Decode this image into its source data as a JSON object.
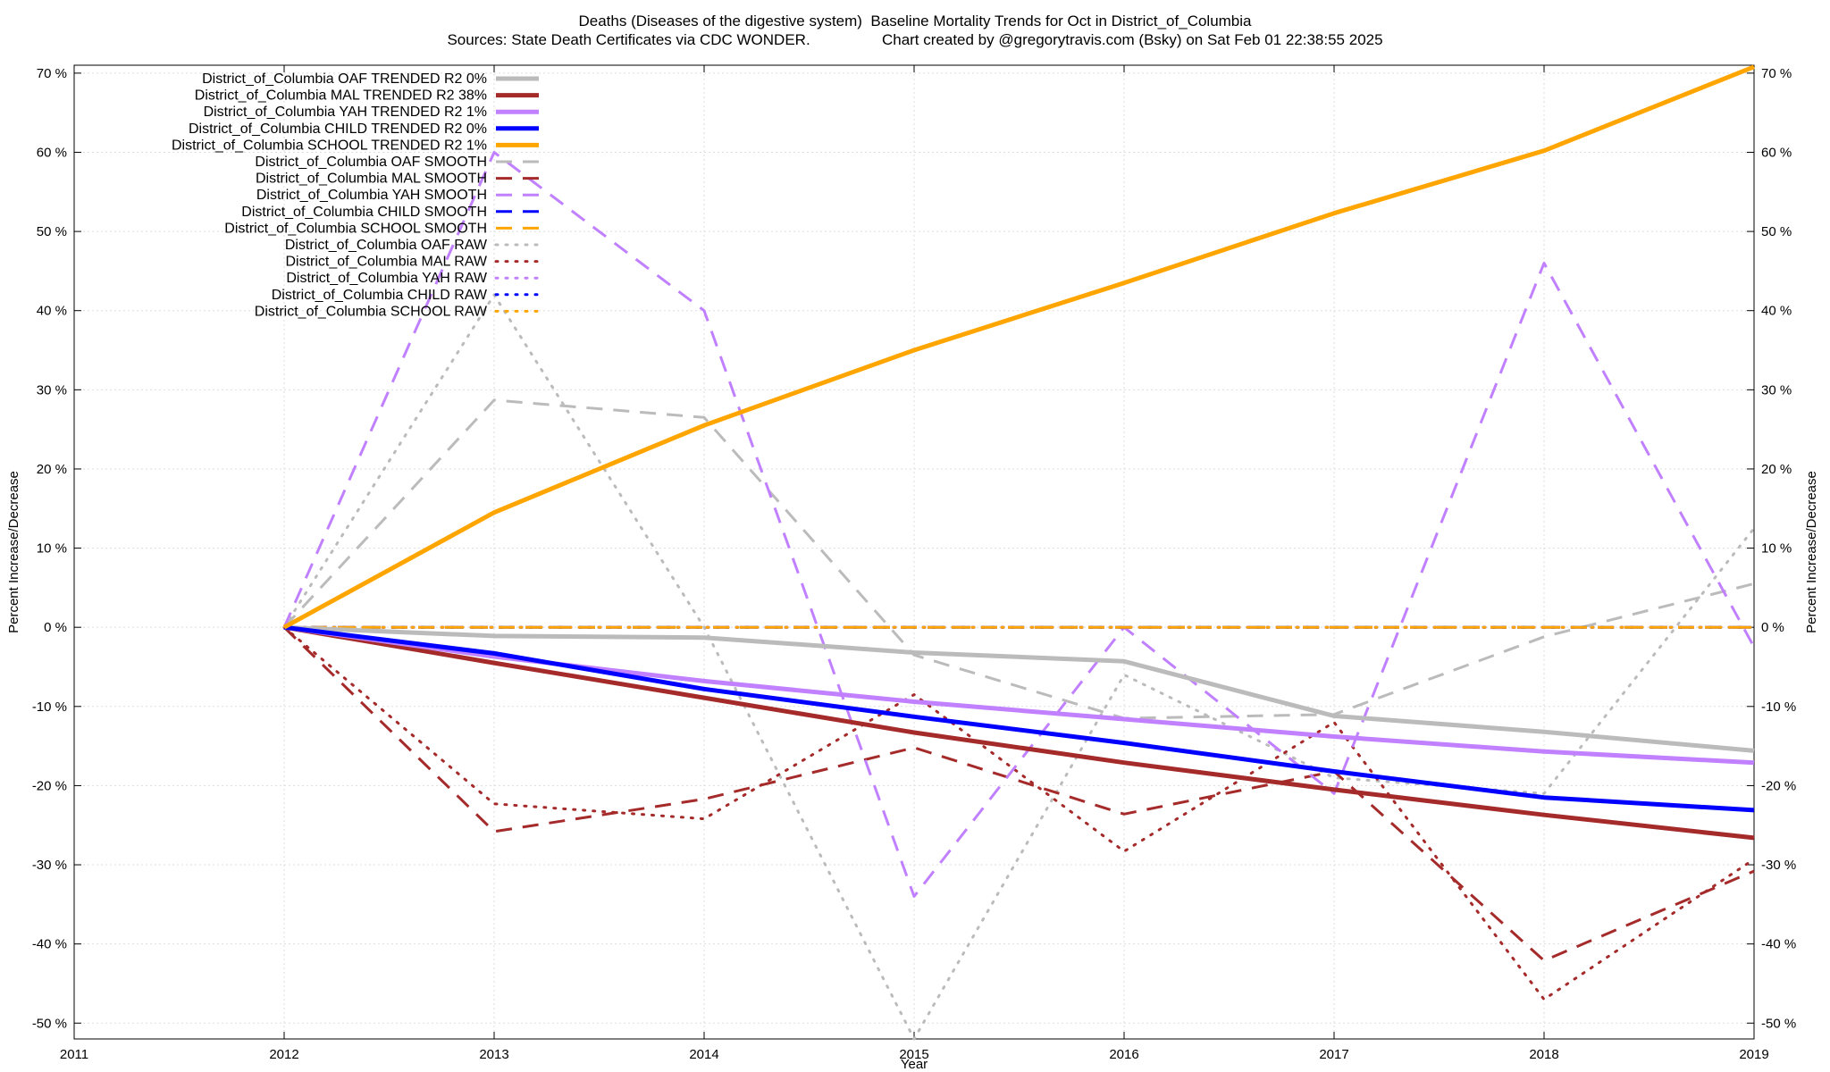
{
  "title_line1": "Deaths (Diseases of the digestive system)  Baseline Mortality Trends for Oct in District_of_Columbia",
  "title_line2": "Sources: State Death Certificates via CDC WONDER.                 Chart created by @gregorytravis.com (Bsky) on Sat Feb 01 22:38:55 2025",
  "chart_data": {
    "type": "line",
    "xlabel": "Year",
    "ylabel": "Percent Increase/Decrease",
    "y2label": "Percent Increase/Decrease",
    "xlim": [
      2011,
      2019
    ],
    "ylim": [
      -52,
      71
    ],
    "x_ticks": [
      "2011",
      "2012",
      "2013",
      "2014",
      "2015",
      "2016",
      "2017",
      "2018",
      "2019"
    ],
    "y_ticks": [
      "-50 %",
      "-40 %",
      "-30 %",
      "-20 %",
      "-10 %",
      "0 %",
      "10 %",
      "20 %",
      "30 %",
      "40 %",
      "50 %",
      "60 %",
      "70 %"
    ],
    "grid": true,
    "legend_position": "top-left",
    "x": [
      2012,
      2013,
      2014,
      2015,
      2016,
      2017,
      2018,
      2019
    ],
    "series": [
      {
        "name": "District_of_Columbia OAF TRENDED R2   0%",
        "color": "#bbbbbb",
        "style": "solid",
        "values": [
          0,
          -1.1,
          -1.3,
          -3.2,
          -4.3,
          -11.2,
          -13.2,
          -15.6
        ]
      },
      {
        "name": "District_of_Columbia MAL TRENDED R2  38%",
        "color": "#a52a2a",
        "style": "solid",
        "values": [
          0,
          -4.5,
          -8.9,
          -13.3,
          -17.1,
          -20.5,
          -23.7,
          -26.6
        ]
      },
      {
        "name": "District_of_Columbia YAH TRENDED R2   1%",
        "color": "#c080ff",
        "style": "solid",
        "values": [
          0,
          -3.7,
          -6.8,
          -9.4,
          -11.6,
          -13.8,
          -15.7,
          -17.1
        ]
      },
      {
        "name": "District_of_Columbia CHILD TRENDED R2   0%",
        "color": "#0000ff",
        "style": "solid",
        "values": [
          0,
          -3.3,
          -7.8,
          -11.3,
          -14.6,
          -18.2,
          -21.5,
          -23.1
        ]
      },
      {
        "name": "District_of_Columbia SCHOOL TRENDED R2   1%",
        "color": "#ffa500",
        "style": "solid",
        "values": [
          0,
          14.5,
          25.5,
          35.0,
          43.5,
          52.3,
          60.2,
          70.8
        ]
      },
      {
        "name": "District_of_Columbia OAF SMOOTH",
        "color": "#bbbbbb",
        "style": "dashed",
        "values": [
          0,
          28.7,
          26.5,
          -3.5,
          -11.5,
          -11.0,
          -1.2,
          5.5
        ]
      },
      {
        "name": "District_of_Columbia MAL SMOOTH",
        "color": "#a52a2a",
        "style": "dashed",
        "values": [
          0,
          -25.8,
          -21.7,
          -15.2,
          -23.6,
          -18.2,
          -42.1,
          -30.8
        ]
      },
      {
        "name": "District_of_Columbia YAH SMOOTH",
        "color": "#c080ff",
        "style": "dashed",
        "values": [
          0,
          60.0,
          40.0,
          -34.0,
          0,
          -21.0,
          46.0,
          -2.5
        ]
      },
      {
        "name": "District_of_Columbia CHILD SMOOTH",
        "color": "#0000ff",
        "style": "dashed",
        "values": [
          0,
          0,
          0,
          0,
          0,
          0,
          0,
          0
        ]
      },
      {
        "name": "District_of_Columbia SCHOOL SMOOTH",
        "color": "#ffa500",
        "style": "dashed",
        "values": [
          0,
          0,
          0,
          0,
          0,
          0,
          0,
          0
        ]
      },
      {
        "name": "District_of_Columbia OAF RAW",
        "color": "#bbbbbb",
        "style": "dotted",
        "values": [
          0,
          42.0,
          0,
          -52.0,
          -6.0,
          -19.0,
          -21.0,
          12.5
        ]
      },
      {
        "name": "District_of_Columbia MAL RAW",
        "color": "#a52a2a",
        "style": "dotted",
        "values": [
          0,
          -22.3,
          -24.2,
          -8.5,
          -28.3,
          -12.0,
          -47.0,
          -29.3
        ]
      },
      {
        "name": "District_of_Columbia YAH RAW",
        "color": "#c080ff",
        "style": "dotted",
        "values": [
          0,
          0,
          0,
          0,
          0,
          0,
          0,
          0
        ]
      },
      {
        "name": "District_of_Columbia CHILD RAW",
        "color": "#0000ff",
        "style": "dotted",
        "values": [
          0,
          0,
          0,
          0,
          0,
          0,
          0,
          0
        ]
      },
      {
        "name": "District_of_Columbia SCHOOL RAW",
        "color": "#ffa500",
        "style": "dotted",
        "values": [
          0,
          0,
          0,
          0,
          0,
          0,
          0,
          0
        ]
      }
    ]
  }
}
